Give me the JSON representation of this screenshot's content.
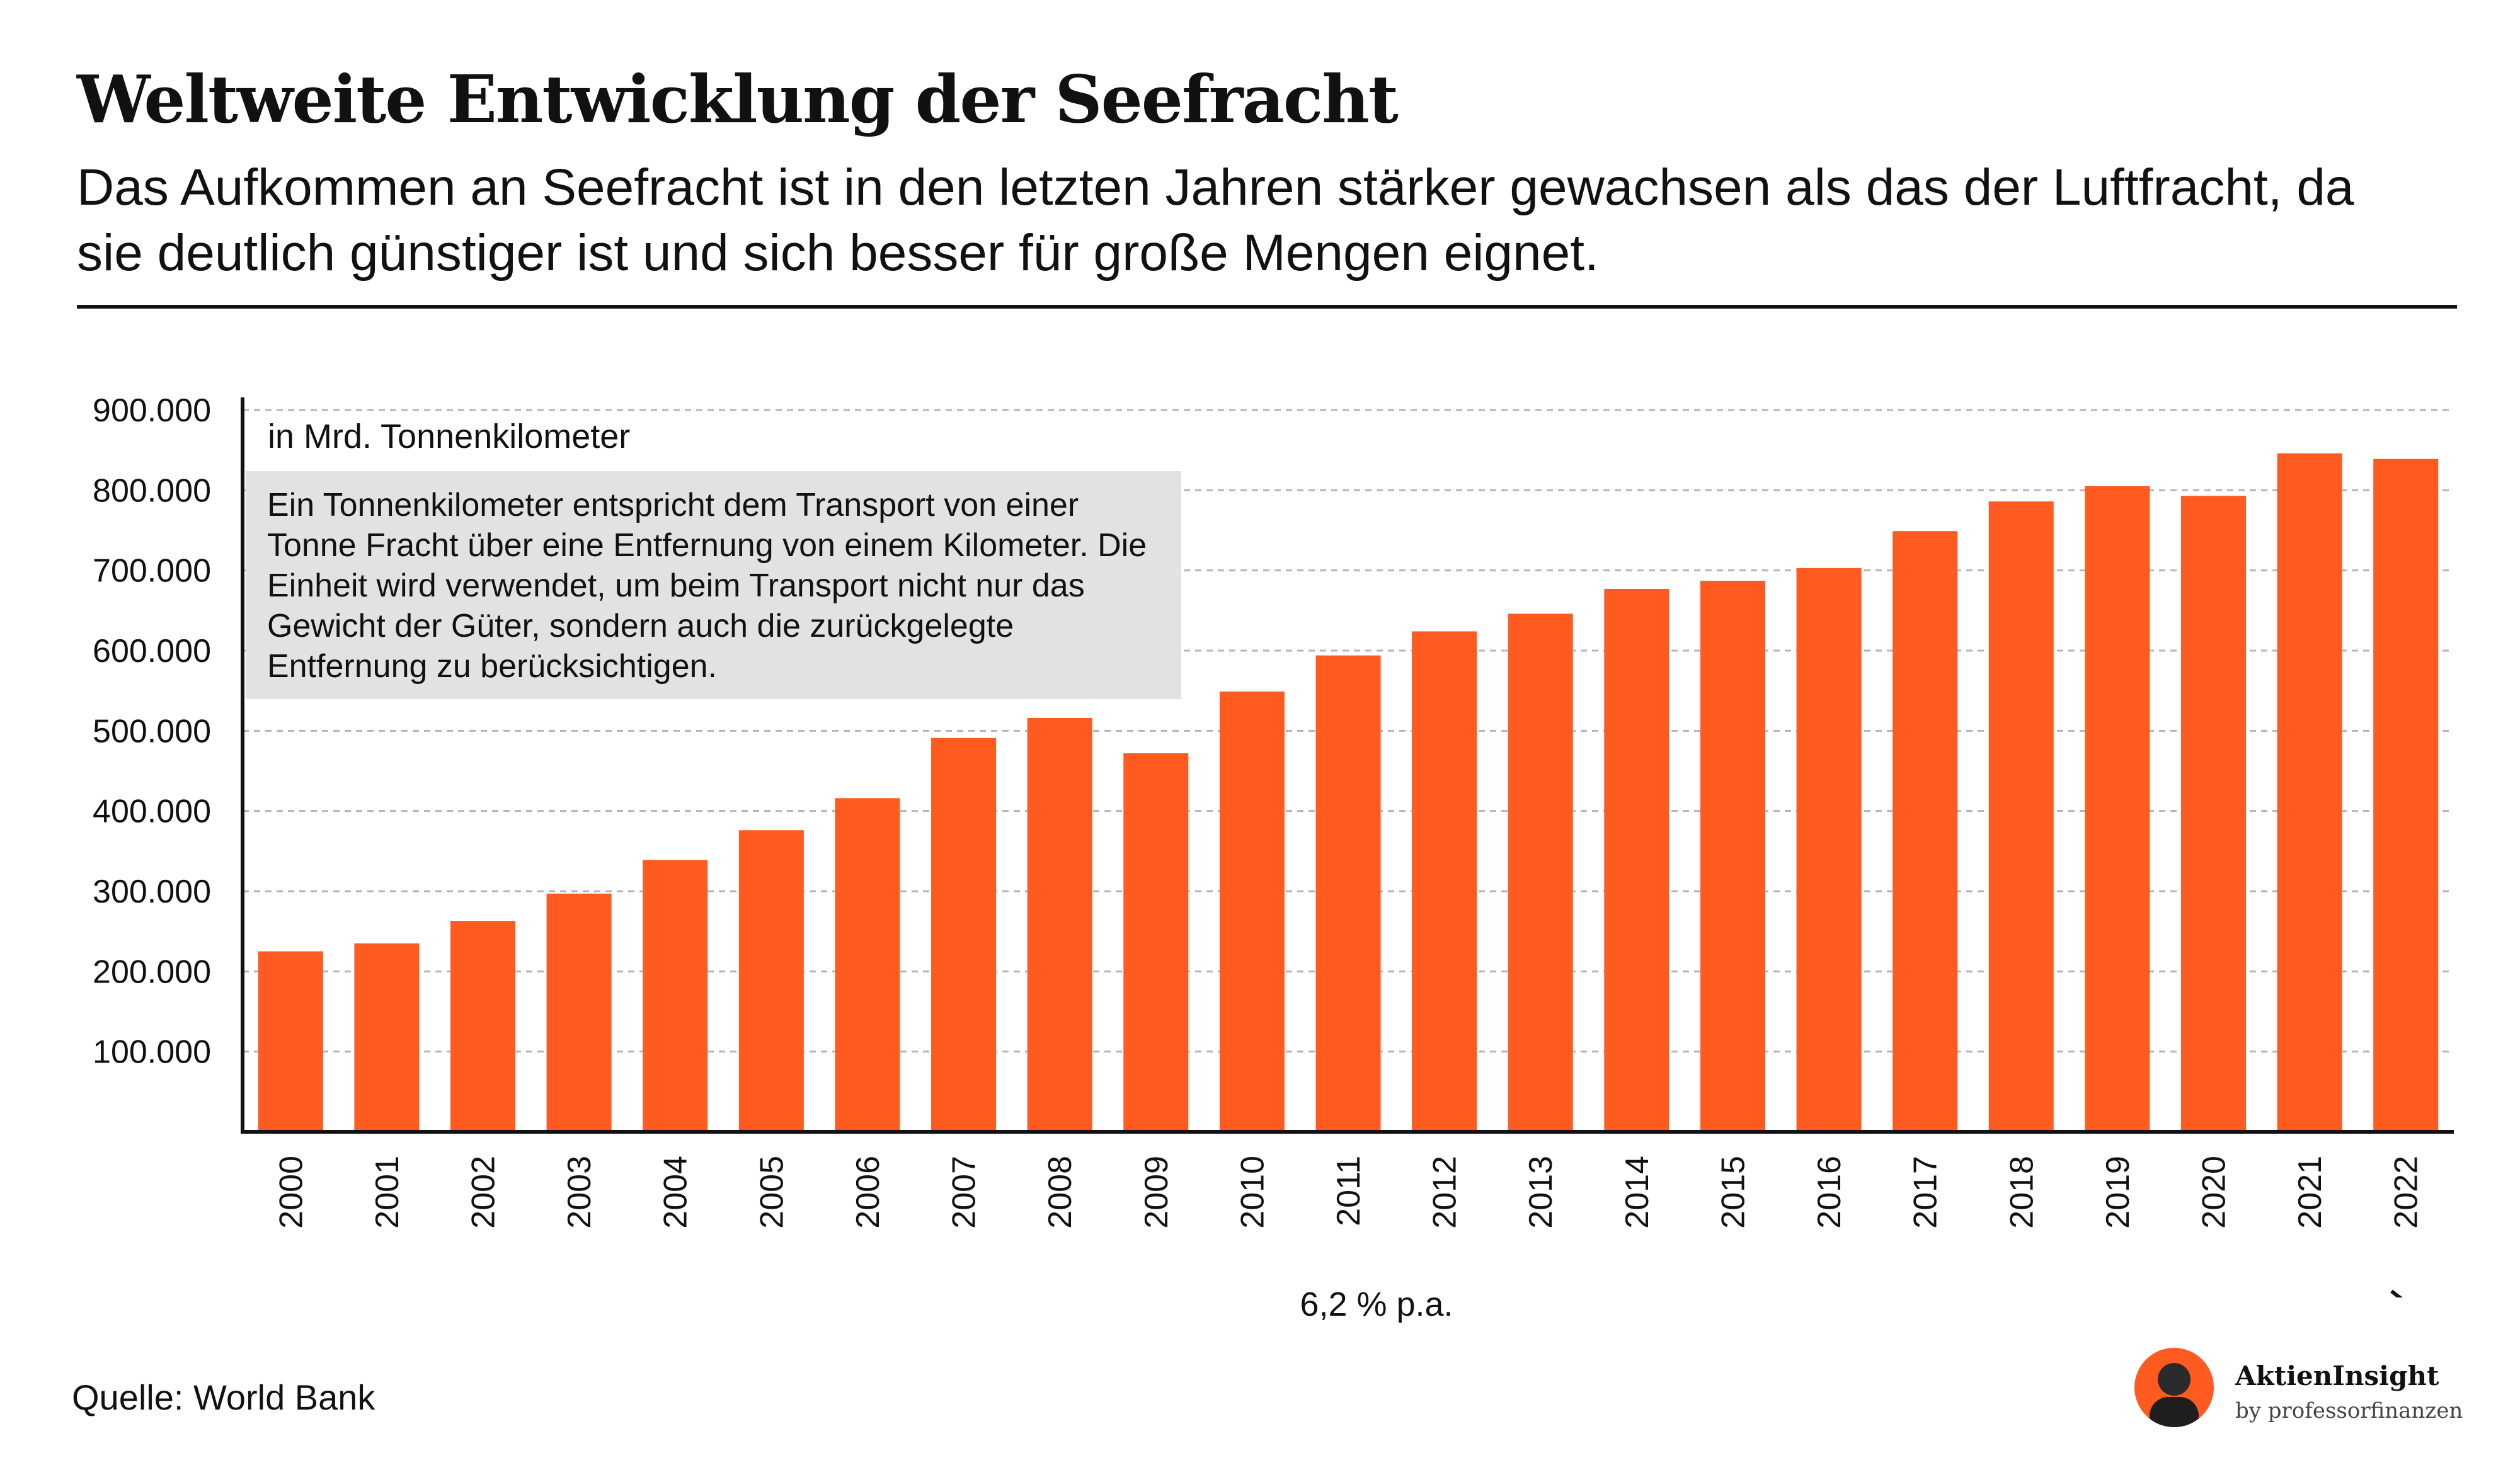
{
  "header": {
    "title": "Weltweite Entwicklung der Seefracht",
    "subtitle": "Das Aufkommen an Seefracht ist in den letzten Jahren stärker gewachsen als das der Luftfracht, da sie deutlich günstiger ist und sich besser für große Mengen eignet."
  },
  "annotation": {
    "unit": "in Mrd. Tonnenkilometer",
    "info": "Ein Tonnenkilometer entspricht dem Transport von einer Tonne Fracht über eine Entfernung von einem Kilometer. Die Einheit wird verwendet, um beim Transport nicht nur das Gewicht der Güter, sondern auch die zurückgelegte Entfernung zu berücksichtigen."
  },
  "growth": {
    "label": "6,2 % p.a."
  },
  "footer": {
    "source": "Quelle: World Bank",
    "brand_name": "AktienInsight",
    "brand_sub": "by professorfinanzen"
  },
  "colors": {
    "bar": "#ff5a1f",
    "axis": "#111111",
    "grid": "#b5b5b5",
    "info_bg": "#e2e2e2"
  },
  "chart_data": {
    "type": "bar",
    "title": "Weltweite Entwicklung der Seefracht",
    "xlabel": "",
    "ylabel": "in Mrd. Tonnenkilometer",
    "ylim": [
      0,
      900000
    ],
    "grid": true,
    "y_ticks": [
      100000,
      200000,
      300000,
      400000,
      500000,
      600000,
      700000,
      800000,
      900000
    ],
    "y_tick_labels": [
      "100.000",
      "200.000",
      "300.000",
      "400.000",
      "500.000",
      "600.000",
      "700.000",
      "800.000",
      "900.000"
    ],
    "categories": [
      "2000",
      "2001",
      "2002",
      "2003",
      "2004",
      "2005",
      "2006",
      "2007",
      "2008",
      "2009",
      "2010",
      "2011",
      "2012",
      "2013",
      "2014",
      "2015",
      "2016",
      "2017",
      "2018",
      "2019",
      "2020",
      "2021",
      "2022"
    ],
    "values": [
      225000,
      235000,
      263000,
      297000,
      339000,
      376000,
      416000,
      491000,
      516000,
      472000,
      549000,
      594000,
      624000,
      646000,
      677000,
      687000,
      703000,
      749000,
      786000,
      805000,
      793000,
      846000,
      839000
    ]
  }
}
